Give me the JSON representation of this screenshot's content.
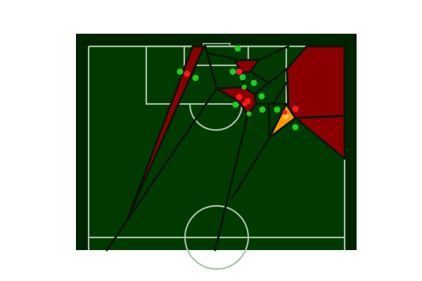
{
  "figure": {
    "background": "#ffffff",
    "outer_field_color": "#002300",
    "pitch_color": "#003a00",
    "line_color": "#a7c4a7",
    "cell_edge_color": "#0a150a",
    "colors": {
      "team_red": "#ff1a1a",
      "team_green": "#1fcc1f",
      "region_red": "#8a0000",
      "region_highlight": "#ff9800",
      "region_highlight_inner": "#ffd24a"
    }
  },
  "players": {
    "red_count": 7,
    "green_count": 13
  }
}
